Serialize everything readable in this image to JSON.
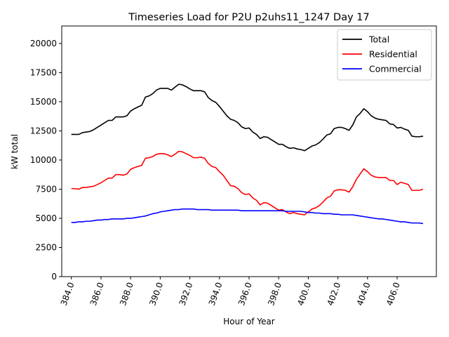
{
  "chart_data": {
    "type": "line",
    "title": "Timeseries Load for P2U p2uhs11_1247  Day 17",
    "xlabel": "Hour of Year",
    "ylabel": "kW total",
    "xlim": [
      383.35,
      408.65
    ],
    "ylim": [
      0,
      21500
    ],
    "xticks": [
      384,
      386,
      388,
      390,
      392,
      394,
      396,
      398,
      400,
      402,
      404,
      406
    ],
    "xtick_labels": [
      "384.0",
      "386.0",
      "388.0",
      "390.0",
      "392.0",
      "394.0",
      "396.0",
      "398.0",
      "400.0",
      "402.0",
      "404.0",
      "406.0"
    ],
    "yticks": [
      0,
      2500,
      5000,
      7500,
      10000,
      12500,
      15000,
      17500,
      20000
    ],
    "ytick_labels": [
      "0",
      "2500",
      "5000",
      "7500",
      "10000",
      "12500",
      "15000",
      "17500",
      "20000"
    ],
    "legend_position": "top-right",
    "x": [
      384.0,
      384.25,
      384.5,
      384.75,
      385.0,
      385.25,
      385.5,
      385.75,
      386.0,
      386.25,
      386.5,
      386.75,
      387.0,
      387.25,
      387.5,
      387.75,
      388.0,
      388.25,
      388.5,
      388.75,
      389.0,
      389.25,
      389.5,
      389.75,
      390.0,
      390.25,
      390.5,
      390.75,
      391.0,
      391.25,
      391.5,
      391.75,
      392.0,
      392.25,
      392.5,
      392.75,
      393.0,
      393.25,
      393.5,
      393.75,
      394.0,
      394.25,
      394.5,
      394.75,
      395.0,
      395.25,
      395.5,
      395.75,
      396.0,
      396.25,
      396.5,
      396.75,
      397.0,
      397.25,
      397.5,
      397.75,
      398.0,
      398.25,
      398.5,
      398.75,
      399.0,
      399.25,
      399.5,
      399.75,
      400.0,
      400.25,
      400.5,
      400.75,
      401.0,
      401.25,
      401.5,
      401.75,
      402.0,
      402.25,
      402.5,
      402.75,
      403.0,
      403.25,
      403.5,
      403.75,
      404.0,
      404.25,
      404.5,
      404.75,
      405.0,
      405.25,
      405.5,
      405.75,
      406.0,
      406.25,
      406.5,
      406.75,
      407.0,
      407.25,
      407.5,
      407.75
    ],
    "series": [
      {
        "name": "Total",
        "color": "#000000",
        "values": [
          12200,
          12200,
          12200,
          12350,
          12400,
          12450,
          12600,
          12800,
          13000,
          13200,
          13400,
          13400,
          13700,
          13700,
          13700,
          13800,
          14200,
          14400,
          14550,
          14700,
          15400,
          15500,
          15700,
          16000,
          16150,
          16150,
          16150,
          16000,
          16250,
          16500,
          16450,
          16300,
          16100,
          15950,
          15950,
          15950,
          15850,
          15350,
          15100,
          14950,
          14600,
          14200,
          13800,
          13500,
          13400,
          13200,
          12850,
          12700,
          12750,
          12400,
          12200,
          11850,
          12000,
          11950,
          11750,
          11550,
          11350,
          11350,
          11150,
          11000,
          11050,
          10950,
          10900,
          10800,
          11000,
          11200,
          11300,
          11500,
          11800,
          12150,
          12250,
          12700,
          12800,
          12800,
          12700,
          12550,
          13000,
          13700,
          14000,
          14400,
          14150,
          13800,
          13600,
          13500,
          13450,
          13400,
          13100,
          13050,
          12750,
          12800,
          12650,
          12550,
          12050,
          12000,
          12000,
          12050
        ]
      },
      {
        "name": "Residential",
        "color": "#ff0000",
        "values": [
          7550,
          7550,
          7500,
          7650,
          7650,
          7700,
          7750,
          7900,
          8050,
          8250,
          8450,
          8450,
          8750,
          8750,
          8700,
          8800,
          9200,
          9350,
          9450,
          9550,
          10150,
          10200,
          10300,
          10500,
          10550,
          10550,
          10450,
          10300,
          10500,
          10750,
          10700,
          10550,
          10400,
          10200,
          10200,
          10250,
          10150,
          9700,
          9450,
          9350,
          9000,
          8700,
          8250,
          7800,
          7750,
          7550,
          7200,
          7050,
          7100,
          6750,
          6550,
          6150,
          6350,
          6300,
          6100,
          5900,
          5700,
          5750,
          5550,
          5400,
          5500,
          5400,
          5350,
          5300,
          5550,
          5800,
          5900,
          6100,
          6400,
          6750,
          6900,
          7350,
          7450,
          7450,
          7400,
          7250,
          7700,
          8350,
          8800,
          9250,
          9000,
          8700,
          8550,
          8500,
          8500,
          8500,
          8250,
          8250,
          7900,
          8100,
          8000,
          7900,
          7400,
          7400,
          7400,
          7500
        ]
      },
      {
        "name": "Commercial",
        "color": "#0000ff",
        "values": [
          4650,
          4650,
          4700,
          4700,
          4750,
          4750,
          4800,
          4850,
          4850,
          4900,
          4900,
          4950,
          4950,
          4950,
          4950,
          5000,
          5000,
          5050,
          5100,
          5150,
          5200,
          5300,
          5400,
          5450,
          5550,
          5600,
          5650,
          5700,
          5750,
          5750,
          5800,
          5800,
          5800,
          5800,
          5750,
          5750,
          5750,
          5750,
          5700,
          5700,
          5700,
          5700,
          5700,
          5700,
          5700,
          5700,
          5650,
          5650,
          5650,
          5650,
          5650,
          5650,
          5650,
          5650,
          5650,
          5650,
          5650,
          5650,
          5600,
          5600,
          5600,
          5600,
          5600,
          5550,
          5500,
          5500,
          5450,
          5450,
          5400,
          5400,
          5400,
          5350,
          5350,
          5300,
          5300,
          5300,
          5300,
          5250,
          5200,
          5150,
          5100,
          5050,
          5000,
          4950,
          4950,
          4900,
          4850,
          4800,
          4750,
          4700,
          4700,
          4650,
          4600,
          4600,
          4600,
          4550
        ]
      }
    ]
  }
}
